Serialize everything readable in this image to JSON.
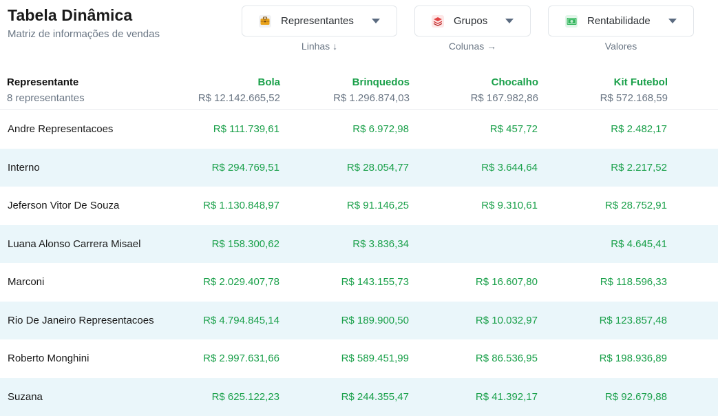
{
  "header": {
    "title": "Tabela Dinâmica",
    "subtitle": "Matriz de informações de vendas"
  },
  "selectors": [
    {
      "label": "Representantes",
      "icon": "briefcase-icon",
      "caption": "Linhas ↓"
    },
    {
      "label": "Grupos",
      "icon": "layers-icon",
      "caption": "Colunas →"
    },
    {
      "label": "Rentabilidade",
      "icon": "money-icon",
      "caption": "Valores"
    }
  ],
  "colors": {
    "accent": "#1aa04a",
    "row_alt": "#eaf6fa",
    "muted": "#6b7785"
  },
  "table": {
    "first_header": "Representante",
    "first_sub": "8 representantes",
    "columns": [
      {
        "name": "Bola",
        "total": "R$ 12.142.665,52"
      },
      {
        "name": "Brinquedos",
        "total": "R$ 1.296.874,03"
      },
      {
        "name": "Chocalho",
        "total": "R$ 167.982,86"
      },
      {
        "name": "Kit Futebol",
        "total": "R$ 572.168,59"
      }
    ],
    "rows": [
      {
        "name": "Andre Representacoes",
        "values": [
          "R$ 111.739,61",
          "R$ 6.972,98",
          "R$ 457,72",
          "R$ 2.482,17"
        ]
      },
      {
        "name": "Interno",
        "values": [
          "R$ 294.769,51",
          "R$ 28.054,77",
          "R$ 3.644,64",
          "R$ 2.217,52"
        ]
      },
      {
        "name": "Jeferson Vitor De Souza",
        "values": [
          "R$ 1.130.848,97",
          "R$ 91.146,25",
          "R$ 9.310,61",
          "R$ 28.752,91"
        ]
      },
      {
        "name": "Luana Alonso Carrera Misael",
        "values": [
          "R$ 158.300,62",
          "R$ 3.836,34",
          "",
          "R$ 4.645,41"
        ]
      },
      {
        "name": "Marconi",
        "values": [
          "R$ 2.029.407,78",
          "R$ 143.155,73",
          "R$ 16.607,80",
          "R$ 118.596,33"
        ]
      },
      {
        "name": "Rio De Janeiro Representacoes",
        "values": [
          "R$ 4.794.845,14",
          "R$ 189.900,50",
          "R$ 10.032,97",
          "R$ 123.857,48"
        ]
      },
      {
        "name": "Roberto Monghini",
        "values": [
          "R$ 2.997.631,66",
          "R$ 589.451,99",
          "R$ 86.536,95",
          "R$ 198.936,89"
        ]
      },
      {
        "name": "Suzana",
        "values": [
          "R$ 625.122,23",
          "R$ 244.355,47",
          "R$ 41.392,17",
          "R$ 92.679,88"
        ]
      }
    ]
  }
}
